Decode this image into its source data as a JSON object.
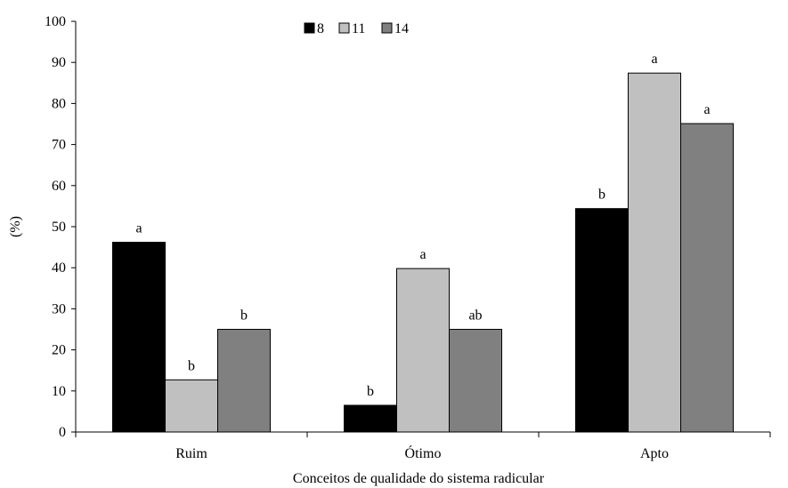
{
  "chart_data": {
    "type": "bar",
    "xlabel": "Conceitos de qualidade do sistema radicular",
    "ylabel": "(%)",
    "ylim": [
      0,
      100
    ],
    "yticks": [
      0,
      10,
      20,
      30,
      40,
      50,
      60,
      70,
      80,
      90,
      100
    ],
    "categories": [
      "Ruim",
      "Ótimo",
      "Apto"
    ],
    "legend_position": "top",
    "grid": false,
    "series": [
      {
        "name": "8",
        "color": "#000000",
        "values": [
          46.2,
          6.5,
          54.4
        ],
        "labels": [
          "a",
          "b",
          "b"
        ]
      },
      {
        "name": "11",
        "color": "#c0c0c0",
        "values": [
          12.7,
          39.8,
          87.4
        ],
        "labels": [
          "b",
          "a",
          "a"
        ]
      },
      {
        "name": "14",
        "color": "#808080",
        "values": [
          25.0,
          25.0,
          75.1
        ],
        "labels": [
          "b",
          "ab",
          "a"
        ]
      }
    ]
  }
}
